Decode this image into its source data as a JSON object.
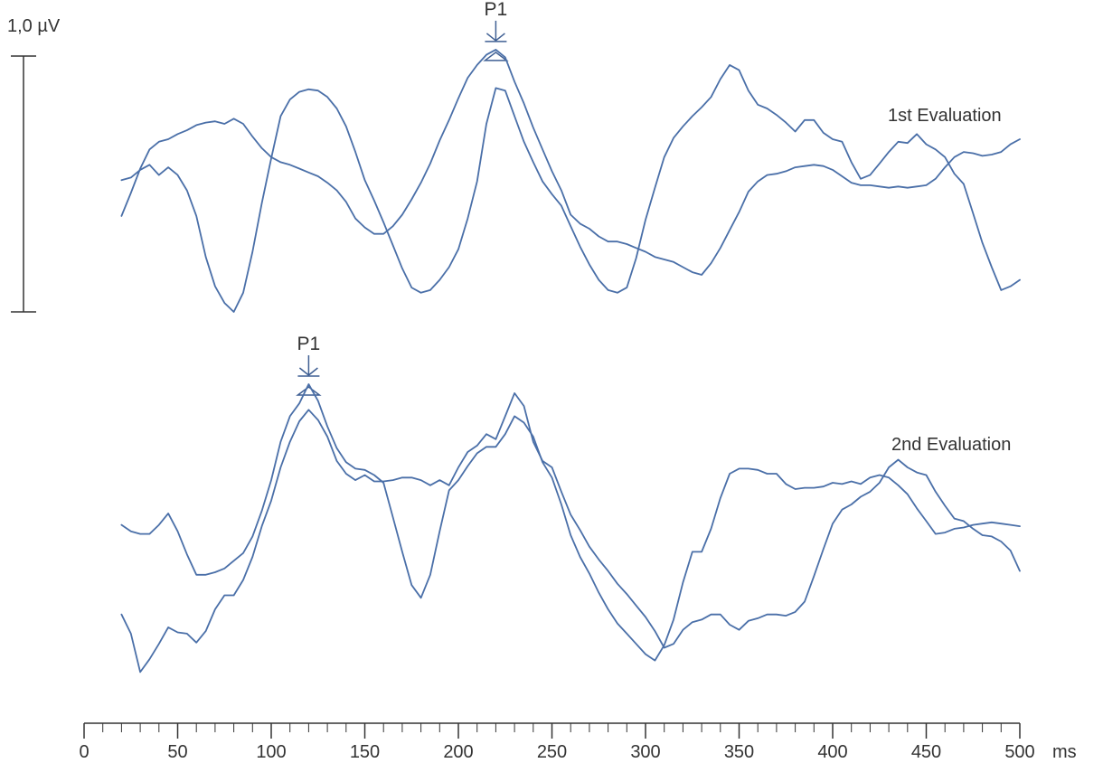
{
  "colors": {
    "trace": "#4a6fa8",
    "axis": "#333333",
    "marker": "#3f5f93"
  },
  "chart_data": {
    "type": "line",
    "x_unit": "ms",
    "xlim": [
      0,
      500
    ],
    "x_ticks": [
      0,
      50,
      100,
      150,
      200,
      250,
      300,
      350,
      400,
      450,
      500
    ],
    "x_tick_labels": [
      "0",
      "50",
      "100",
      "150",
      "200",
      "250",
      "300",
      "350",
      "400",
      "450",
      "500"
    ],
    "scale_bar": {
      "label": "1,0 µV",
      "value_uv": 1.0
    },
    "grid": false,
    "panels": [
      {
        "label": "1st Evaluation",
        "peak": {
          "name": "P1",
          "x": 220
        },
        "ylim": [
          -1.15,
          0.85
        ],
        "series": [
          {
            "x": [
              20,
              25,
              30,
              35,
              40,
              45,
              50,
              55,
              60,
              65,
              70,
              75,
              80,
              85,
              90,
              95,
              100,
              105,
              110,
              115,
              120,
              125,
              130,
              135,
              140,
              145,
              150,
              155,
              160,
              165,
              170,
              175,
              180,
              185,
              190,
              195,
              200,
              205,
              210,
              215,
              220,
              225,
              230,
              235,
              240,
              245,
              250,
              255,
              260,
              265,
              270,
              275,
              280,
              285,
              290,
              295,
              300,
              305,
              310,
              315,
              320,
              325,
              330,
              335,
              340,
              345,
              350,
              355,
              360,
              365,
              370,
              375,
              380,
              385,
              390,
              395,
              400,
              405,
              410,
              415,
              420,
              425,
              430,
              435,
              440,
              445,
              450,
              455,
              460,
              465,
              470,
              475,
              480,
              485,
              490,
              495,
              500
            ],
            "y": [
              -0.4,
              -0.22,
              -0.03,
              0.12,
              0.18,
              0.2,
              0.24,
              0.27,
              0.31,
              0.33,
              0.34,
              0.32,
              0.36,
              0.32,
              0.22,
              0.13,
              0.06,
              0.02,
              0.0,
              -0.03,
              -0.06,
              -0.09,
              -0.14,
              -0.2,
              -0.29,
              -0.42,
              -0.49,
              -0.54,
              -0.54,
              -0.48,
              -0.39,
              -0.27,
              -0.14,
              0.01,
              0.19,
              0.35,
              0.52,
              0.68,
              0.78,
              0.86,
              0.9,
              0.84,
              0.65,
              0.48,
              0.29,
              0.12,
              -0.05,
              -0.2,
              -0.39,
              -0.46,
              -0.5,
              -0.56,
              -0.6,
              -0.6,
              -0.62,
              -0.65,
              -0.68,
              -0.72,
              -0.74,
              -0.76,
              -0.8,
              -0.84,
              -0.86,
              -0.77,
              -0.65,
              -0.51,
              -0.37,
              -0.21,
              -0.13,
              -0.08,
              -0.07,
              -0.05,
              -0.02,
              -0.01,
              0.0,
              -0.01,
              -0.04,
              -0.09,
              -0.14,
              -0.16,
              -0.16,
              -0.17,
              -0.18,
              -0.17,
              -0.18,
              -0.17,
              -0.16,
              -0.11,
              -0.02,
              0.06,
              0.1,
              0.09,
              0.07,
              0.08,
              0.1,
              0.16,
              0.2
            ]
          },
          {
            "x": [
              20,
              25,
              30,
              35,
              40,
              45,
              50,
              55,
              60,
              65,
              70,
              75,
              80,
              85,
              90,
              95,
              100,
              105,
              110,
              115,
              120,
              125,
              130,
              135,
              140,
              145,
              150,
              155,
              160,
              165,
              170,
              175,
              180,
              185,
              190,
              195,
              200,
              205,
              210,
              215,
              220,
              225,
              230,
              235,
              240,
              245,
              250,
              255,
              260,
              265,
              270,
              275,
              280,
              285,
              290,
              295,
              300,
              305,
              310,
              315,
              320,
              325,
              330,
              335,
              340,
              345,
              350,
              355,
              360,
              365,
              370,
              375,
              380,
              385,
              390,
              395,
              400,
              405,
              410,
              415,
              420,
              425,
              430,
              435,
              440,
              445,
              450,
              455,
              460,
              465,
              470,
              475,
              480,
              485,
              490,
              495,
              500
            ],
            "y": [
              -0.12,
              -0.1,
              -0.04,
              0.0,
              -0.08,
              -0.02,
              -0.08,
              -0.2,
              -0.4,
              -0.72,
              -0.95,
              -1.08,
              -1.15,
              -1.0,
              -0.68,
              -0.3,
              0.05,
              0.38,
              0.51,
              0.57,
              0.59,
              0.58,
              0.53,
              0.44,
              0.3,
              0.1,
              -0.12,
              -0.28,
              -0.45,
              -0.63,
              -0.81,
              -0.96,
              -1.0,
              -0.98,
              -0.9,
              -0.8,
              -0.66,
              -0.42,
              -0.13,
              0.32,
              0.6,
              0.58,
              0.38,
              0.18,
              0.02,
              -0.13,
              -0.23,
              -0.32,
              -0.48,
              -0.64,
              -0.78,
              -0.9,
              -0.98,
              -1.0,
              -0.96,
              -0.73,
              -0.43,
              -0.18,
              0.06,
              0.21,
              0.3,
              0.38,
              0.45,
              0.53,
              0.67,
              0.78,
              0.74,
              0.58,
              0.47,
              0.44,
              0.39,
              0.33,
              0.26,
              0.35,
              0.35,
              0.25,
              0.2,
              0.18,
              0.02,
              -0.11,
              -0.08,
              0.01,
              0.1,
              0.18,
              0.17,
              0.24,
              0.16,
              0.12,
              0.06,
              -0.07,
              -0.15,
              -0.38,
              -0.61,
              -0.8,
              -0.98,
              -0.95,
              -0.9
            ]
          }
        ]
      },
      {
        "label": "2nd Evaluation",
        "peak": {
          "name": "P1",
          "x": 120
        },
        "ylim": [
          -1.15,
          0.85
        ],
        "series": [
          {
            "x": [
              20,
              25,
              30,
              35,
              40,
              45,
              50,
              55,
              60,
              65,
              70,
              75,
              80,
              85,
              90,
              95,
              100,
              105,
              110,
              115,
              120,
              125,
              130,
              135,
              140,
              145,
              150,
              155,
              160,
              165,
              170,
              175,
              180,
              185,
              190,
              195,
              200,
              205,
              210,
              215,
              220,
              225,
              230,
              235,
              240,
              245,
              250,
              255,
              260,
              265,
              270,
              275,
              280,
              285,
              290,
              295,
              300,
              305,
              310,
              315,
              320,
              325,
              330,
              335,
              340,
              345,
              350,
              355,
              360,
              365,
              370,
              375,
              380,
              385,
              390,
              395,
              400,
              405,
              410,
              415,
              420,
              425,
              430,
              435,
              440,
              445,
              450,
              455,
              460,
              465,
              470,
              475,
              480,
              485,
              490,
              495,
              500
            ],
            "y": [
              -0.25,
              -0.3,
              -0.32,
              -0.32,
              -0.25,
              -0.16,
              -0.3,
              -0.48,
              -0.64,
              -0.64,
              -0.62,
              -0.59,
              -0.53,
              -0.47,
              -0.34,
              -0.14,
              0.1,
              0.4,
              0.6,
              0.7,
              0.85,
              0.72,
              0.52,
              0.35,
              0.24,
              0.19,
              0.18,
              0.14,
              0.08,
              -0.19,
              -0.46,
              -0.72,
              -0.82,
              -0.64,
              -0.3,
              0.02,
              0.1,
              0.21,
              0.31,
              0.36,
              0.36,
              0.46,
              0.6,
              0.55,
              0.44,
              0.24,
              0.12,
              -0.09,
              -0.33,
              -0.5,
              -0.63,
              -0.78,
              -0.91,
              -1.02,
              -1.1,
              -1.18,
              -1.26,
              -1.31,
              -1.19,
              -0.99,
              -0.7,
              -0.46,
              -0.46,
              -0.28,
              -0.04,
              0.15,
              0.19,
              0.19,
              0.18,
              0.15,
              0.15,
              0.07,
              0.03,
              0.04,
              0.04,
              0.05,
              0.08,
              0.07,
              0.09,
              0.07,
              0.12,
              0.14,
              0.12,
              0.06,
              -0.01,
              -0.12,
              -0.22,
              -0.32,
              -0.31,
              -0.28,
              -0.27,
              -0.25,
              -0.24,
              -0.23,
              -0.24,
              -0.25,
              -0.26
            ]
          },
          {
            "x": [
              20,
              25,
              30,
              35,
              40,
              45,
              50,
              55,
              60,
              65,
              70,
              75,
              80,
              85,
              90,
              95,
              100,
              105,
              110,
              115,
              120,
              125,
              130,
              135,
              140,
              145,
              150,
              155,
              160,
              165,
              170,
              175,
              180,
              185,
              190,
              195,
              200,
              205,
              210,
              215,
              220,
              225,
              230,
              235,
              240,
              245,
              250,
              255,
              260,
              265,
              270,
              275,
              280,
              285,
              290,
              295,
              300,
              305,
              310,
              315,
              320,
              325,
              330,
              335,
              340,
              345,
              350,
              355,
              360,
              365,
              370,
              375,
              380,
              385,
              390,
              395,
              400,
              405,
              410,
              415,
              420,
              425,
              430,
              435,
              440,
              445,
              450,
              455,
              460,
              465,
              470,
              475,
              480,
              485,
              490,
              495,
              500
            ],
            "y": [
              -0.95,
              -1.1,
              -1.4,
              -1.3,
              -1.18,
              -1.05,
              -1.09,
              -1.1,
              -1.17,
              -1.08,
              -0.91,
              -0.8,
              -0.8,
              -0.68,
              -0.5,
              -0.26,
              -0.06,
              0.2,
              0.4,
              0.56,
              0.65,
              0.57,
              0.44,
              0.25,
              0.15,
              0.1,
              0.14,
              0.09,
              0.09,
              0.1,
              0.12,
              0.12,
              0.1,
              0.06,
              0.1,
              0.06,
              0.2,
              0.32,
              0.37,
              0.46,
              0.42,
              0.6,
              0.78,
              0.68,
              0.4,
              0.25,
              0.2,
              0.01,
              -0.17,
              -0.29,
              -0.42,
              -0.52,
              -0.61,
              -0.71,
              -0.79,
              -0.88,
              -0.97,
              -1.08,
              -1.21,
              -1.18,
              -1.07,
              -1.01,
              -0.99,
              -0.95,
              -0.95,
              -1.03,
              -1.07,
              -1.0,
              -0.98,
              -0.95,
              -0.95,
              -0.96,
              -0.93,
              -0.85,
              -0.65,
              -0.44,
              -0.24,
              -0.13,
              -0.09,
              -0.03,
              0.01,
              0.08,
              0.2,
              0.26,
              0.2,
              0.16,
              0.14,
              0.01,
              -0.1,
              -0.2,
              -0.22,
              -0.28,
              -0.33,
              -0.34,
              -0.38,
              -0.45,
              -0.61
            ]
          }
        ]
      }
    ]
  }
}
